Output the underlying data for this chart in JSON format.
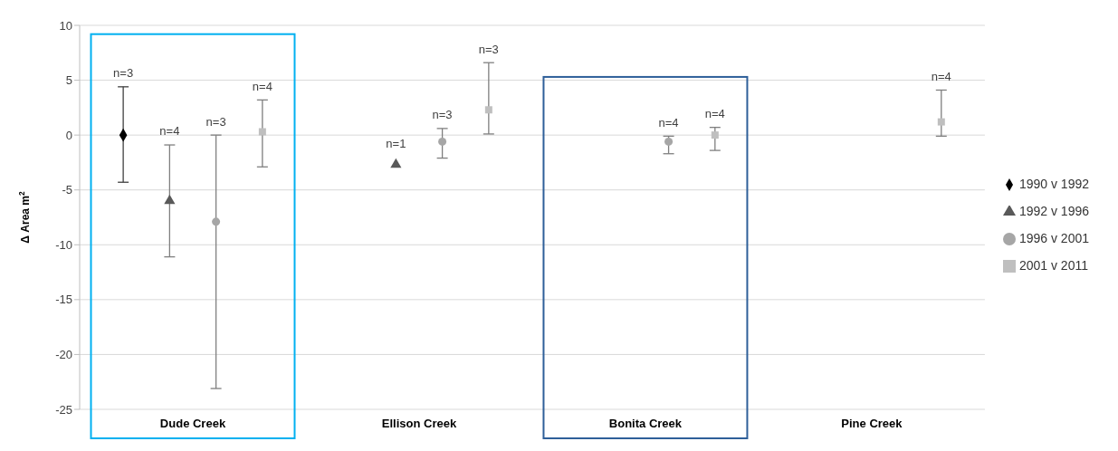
{
  "chart_data": {
    "type": "scatter",
    "ylabel": "Δ Area m$^{2}$",
    "categories": [
      "Dude Creek",
      "Ellison Creek",
      "Bonita Creek",
      "Pine Creek"
    ],
    "series": [
      {
        "name": "1990 v 1992",
        "color": "#000000",
        "marker": "diamond",
        "values": [
          0,
          null,
          null,
          null
        ],
        "errors": [
          [
            -4.3,
            4.4
          ],
          null,
          null,
          null
        ]
      },
      {
        "name": "1992 v 1996",
        "color": "#595959",
        "marker": "triangle",
        "values": [
          -6,
          -2.7,
          null,
          null
        ],
        "errors": [
          [
            -11.1,
            -0.9
          ],
          null,
          null,
          null
        ]
      },
      {
        "name": "1996 v 2001",
        "color": "#a6a6a6",
        "marker": "circle",
        "values": [
          -7.9,
          -0.6,
          -0.6,
          null
        ],
        "errors": [
          [
            -23.1,
            0
          ],
          [
            -2.1,
            0.6
          ],
          [
            -1.7,
            -0.1
          ],
          null
        ]
      },
      {
        "name": "2001 v 2011",
        "color": "#bfbfbf",
        "marker": "square",
        "values": [
          0.3,
          2.3,
          0,
          1.2
        ],
        "errors": [
          [
            -2.9,
            3.2
          ],
          [
            0.1,
            6.6
          ],
          [
            -1.4,
            0.7
          ],
          [
            -0.1,
            4.1
          ]
        ]
      }
    ],
    "annotations": [
      "n=3",
      "n=4",
      "n=3",
      "n=4",
      "n=1",
      "n=3",
      "n=3",
      "n=4",
      "n=4",
      "n=4"
    ],
    "ylim": [
      -25,
      10
    ],
    "yticks": [
      -25,
      -20,
      -15,
      -10,
      -5,
      0,
      5,
      10
    ],
    "grid": "y",
    "legend": "right"
  }
}
